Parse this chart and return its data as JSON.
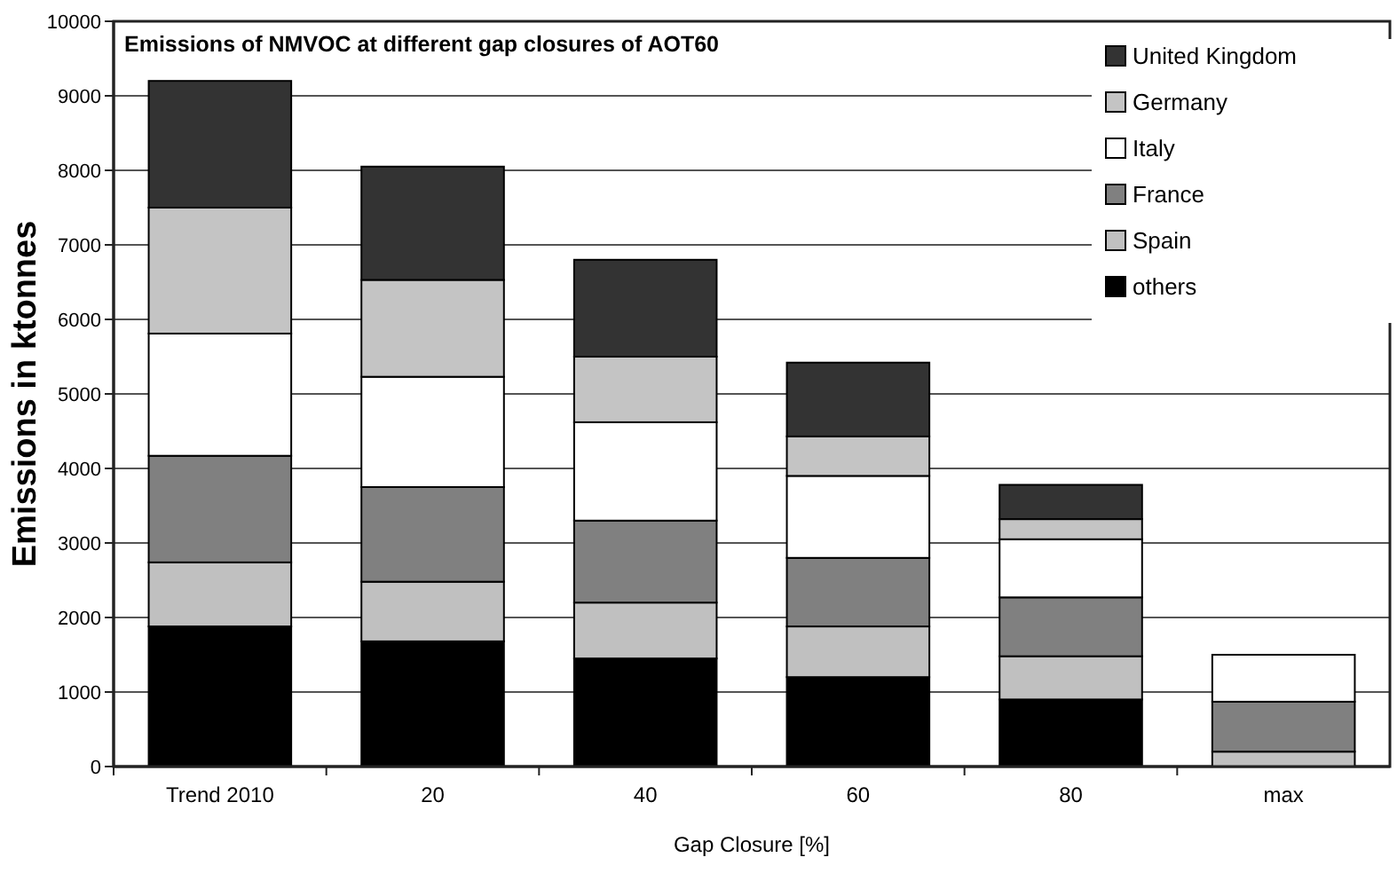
{
  "chart_data": {
    "type": "bar",
    "title": "Emissions of NMVOC at different gap closures of AOT60",
    "xlabel": "Gap Closure [%]",
    "ylabel": "Emissions in ktonnes",
    "categories": [
      "Trend 2010",
      "20",
      "40",
      "60",
      "80",
      "max"
    ],
    "stacked": true,
    "series": [
      {
        "name": "others",
        "color": "#000000",
        "values": [
          1880,
          1680,
          1450,
          1200,
          900,
          0
        ]
      },
      {
        "name": "Spain",
        "color": "#c0c0c0",
        "values": [
          860,
          800,
          750,
          680,
          580,
          200
        ]
      },
      {
        "name": "France",
        "color": "#808080",
        "values": [
          1430,
          1270,
          1100,
          920,
          790,
          670
        ]
      },
      {
        "name": "Italy",
        "color": "#ffffff",
        "values": [
          1640,
          1480,
          1320,
          1100,
          780,
          630
        ]
      },
      {
        "name": "Germany",
        "color": "#c4c4c4",
        "values": [
          1690,
          1300,
          880,
          530,
          270,
          0
        ]
      },
      {
        "name": "United Kingdom",
        "color": "#333333",
        "values": [
          1700,
          1520,
          1300,
          990,
          460,
          0
        ]
      }
    ],
    "ylim": [
      0,
      10000
    ],
    "yticks": [
      0,
      1000,
      2000,
      3000,
      4000,
      5000,
      6000,
      7000,
      8000,
      9000,
      10000
    ],
    "grid": "y",
    "legend": "top right"
  }
}
